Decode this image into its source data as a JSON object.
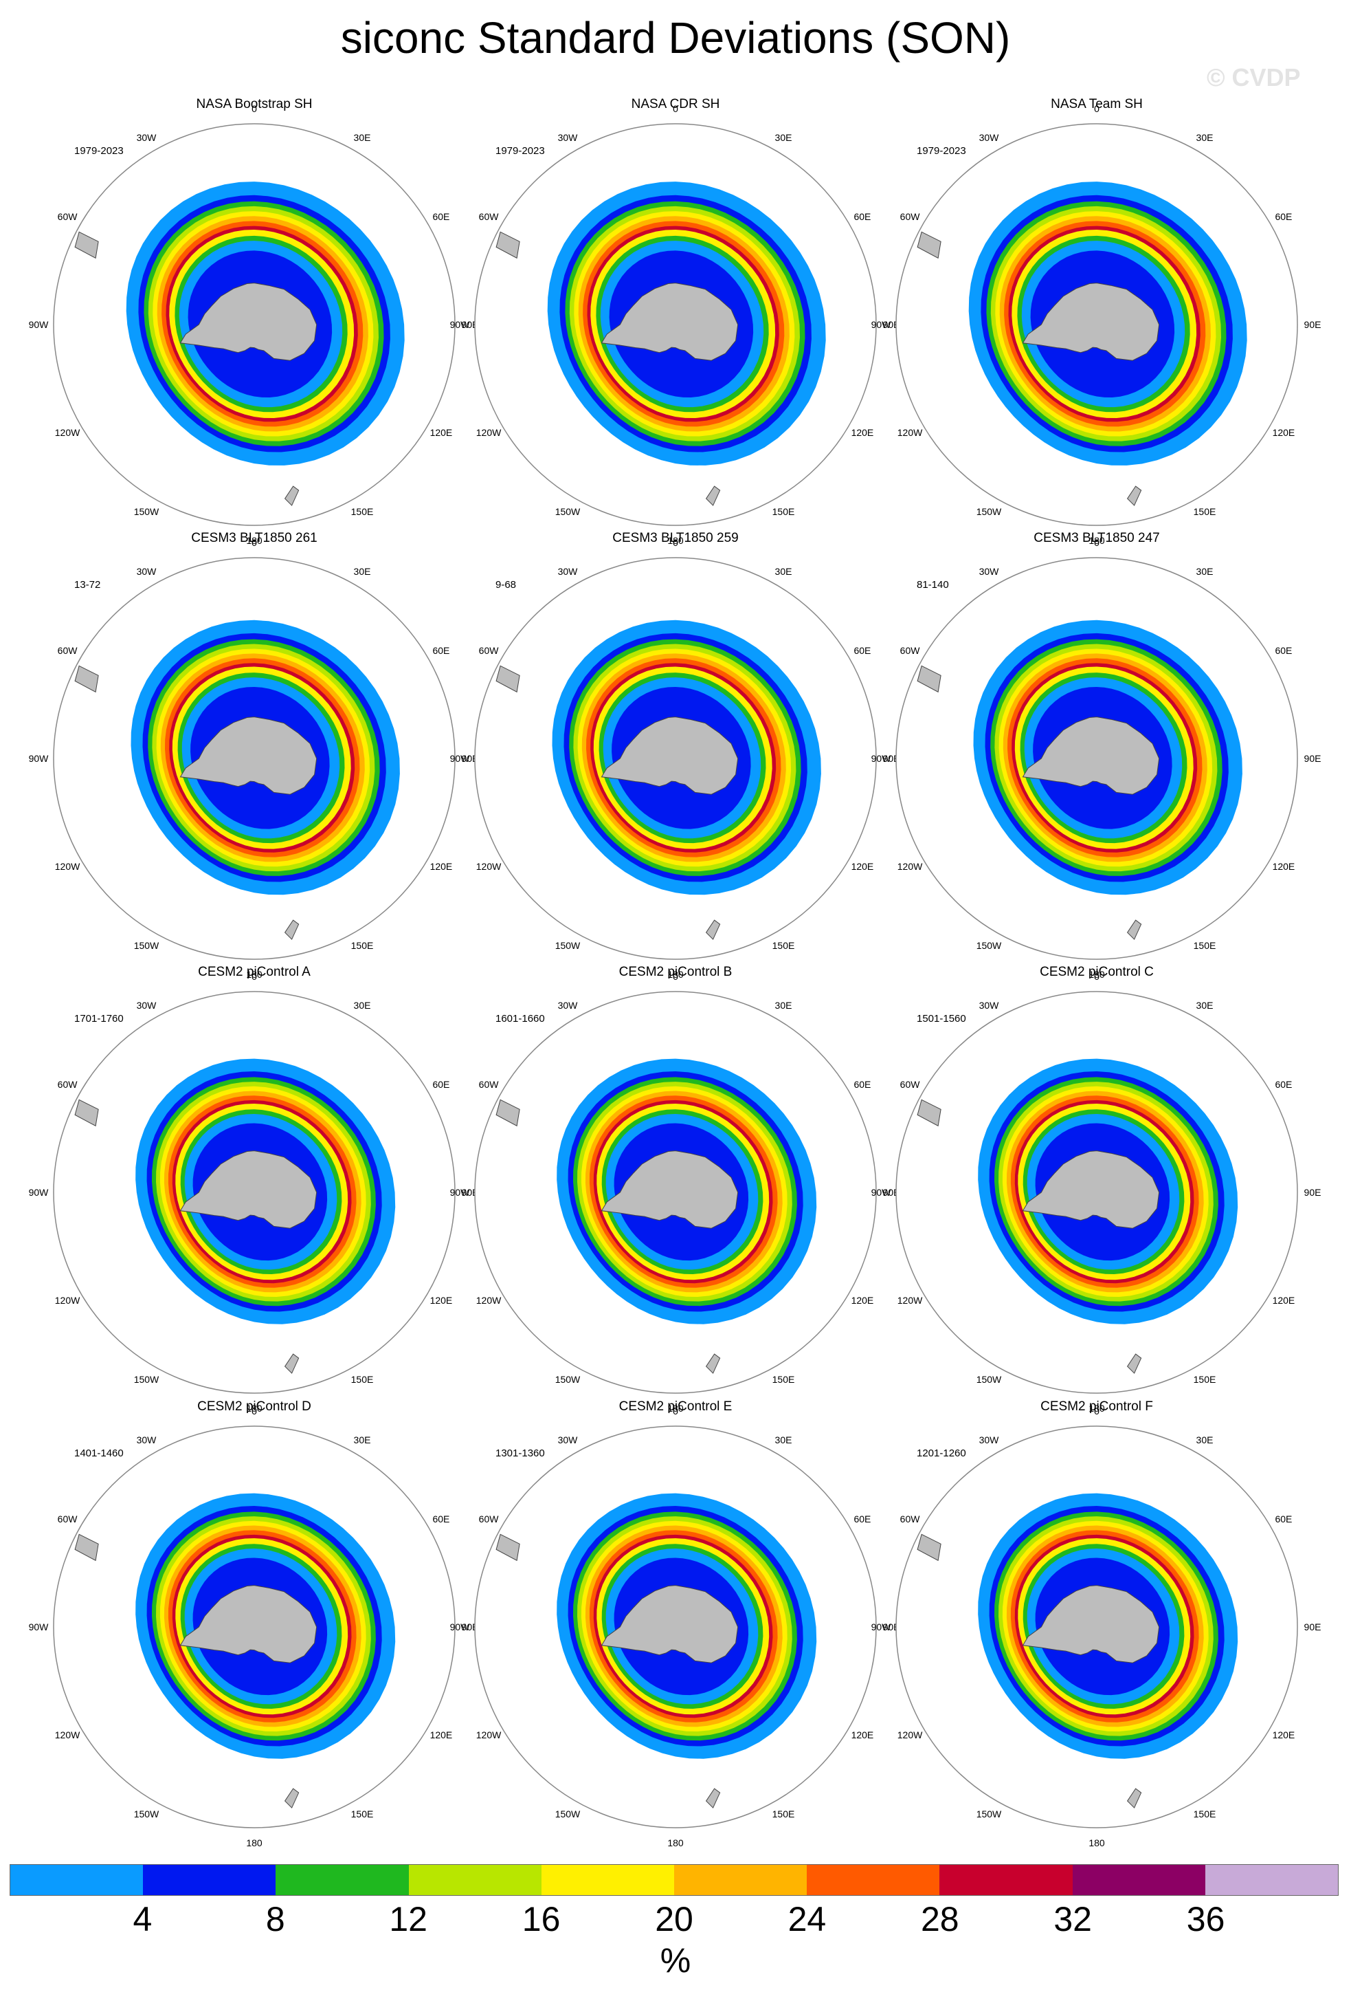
{
  "title": "siconc Standard Deviations (SON)",
  "watermark": "© CVDP",
  "panels": [
    {
      "name": "NASA Bootstrap SH",
      "years": "1979-2023",
      "style": "obs"
    },
    {
      "name": "NASA CDR SH",
      "years": "1979-2023",
      "style": "obs"
    },
    {
      "name": "NASA Team SH",
      "years": "1979-2023",
      "style": "obs"
    },
    {
      "name": "CESM3 BLT1850 261",
      "years": "13-72",
      "style": "blt"
    },
    {
      "name": "CESM3 BLT1850 259",
      "years": "9-68",
      "style": "blt"
    },
    {
      "name": "CESM3 BLT1850 247",
      "years": "81-140",
      "style": "blt"
    },
    {
      "name": "CESM2 piControl A",
      "years": "1701-1760",
      "style": "pic"
    },
    {
      "name": "CESM2 piControl B",
      "years": "1601-1660",
      "style": "pic"
    },
    {
      "name": "CESM2 piControl C",
      "years": "1501-1560",
      "style": "pic"
    },
    {
      "name": "CESM2 piControl D",
      "years": "1401-1460",
      "style": "pic"
    },
    {
      "name": "CESM2 piControl E",
      "years": "1301-1360",
      "style": "pic"
    },
    {
      "name": "CESM2 piControl F",
      "years": "1201-1260",
      "style": "pic"
    }
  ],
  "lon_labels": [
    "0",
    "30E",
    "60E",
    "90E",
    "120E",
    "150E",
    "180",
    "150W",
    "120W",
    "90W",
    "60W",
    "30W"
  ],
  "colorbar": {
    "colors": [
      "#0a9bff",
      "#0018f0",
      "#1fb81f",
      "#b8e600",
      "#fff000",
      "#ffb400",
      "#ff5a00",
      "#c8002d",
      "#8c0064",
      "#c8aad8"
    ],
    "labels": [
      "4",
      "8",
      "12",
      "16",
      "20",
      "24",
      "28",
      "32",
      "36"
    ],
    "units": "%"
  },
  "land_color": "#bdbdbd"
}
